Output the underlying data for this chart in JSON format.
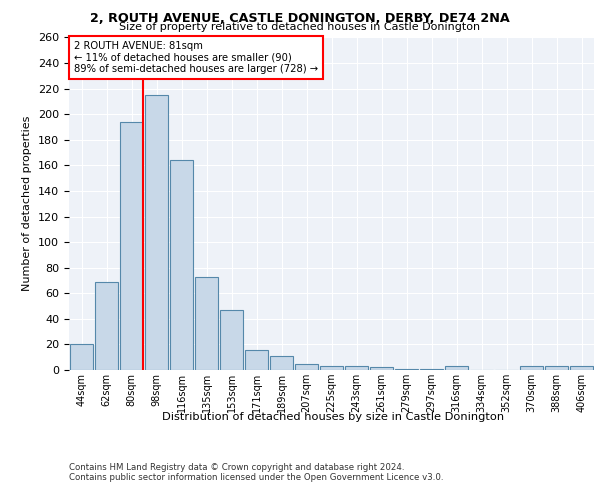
{
  "title1": "2, ROUTH AVENUE, CASTLE DONINGTON, DERBY, DE74 2NA",
  "title2": "Size of property relative to detached houses in Castle Donington",
  "xlabel": "Distribution of detached houses by size in Castle Donington",
  "ylabel": "Number of detached properties",
  "categories": [
    "44sqm",
    "62sqm",
    "80sqm",
    "98sqm",
    "116sqm",
    "135sqm",
    "153sqm",
    "171sqm",
    "189sqm",
    "207sqm",
    "225sqm",
    "243sqm",
    "261sqm",
    "279sqm",
    "297sqm",
    "316sqm",
    "334sqm",
    "352sqm",
    "370sqm",
    "388sqm",
    "406sqm"
  ],
  "values": [
    20,
    69,
    194,
    215,
    164,
    73,
    47,
    16,
    11,
    5,
    3,
    3,
    2,
    1,
    1,
    3,
    0,
    0,
    3,
    3,
    3
  ],
  "bar_color": "#c8d8e8",
  "bar_edge_color": "#5588aa",
  "annotation_text1": "2 ROUTH AVENUE: 81sqm",
  "annotation_text2": "← 11% of detached houses are smaller (90)",
  "annotation_text3": "89% of semi-detached houses are larger (728) →",
  "annotation_box_color": "white",
  "annotation_box_edge": "red",
  "vline_color": "red",
  "ylim": [
    0,
    260
  ],
  "yticks": [
    0,
    20,
    40,
    60,
    80,
    100,
    120,
    140,
    160,
    180,
    200,
    220,
    240,
    260
  ],
  "background_color": "#eef2f8",
  "footer1": "Contains HM Land Registry data © Crown copyright and database right 2024.",
  "footer2": "Contains public sector information licensed under the Open Government Licence v3.0.",
  "fig_bg": "#ffffff"
}
